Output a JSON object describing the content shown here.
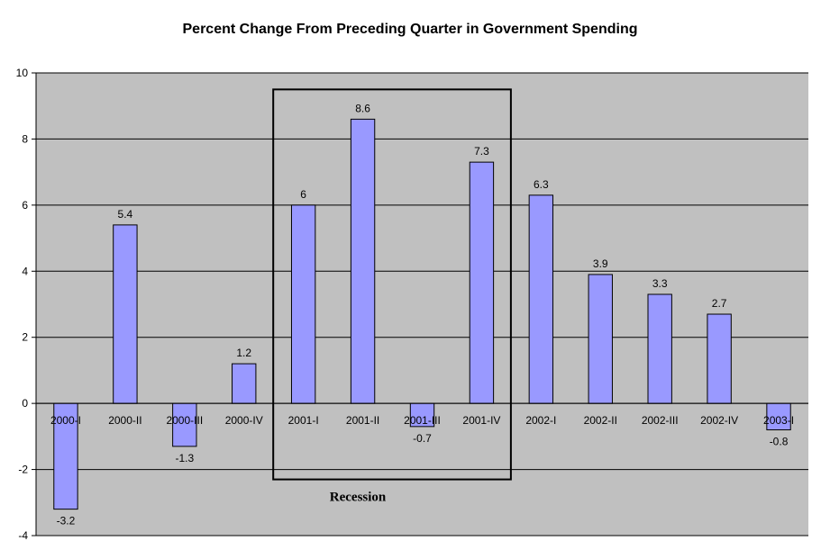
{
  "chart_data": {
    "type": "bar",
    "title": "Percent Change From Preceding Quarter in Government Spending",
    "xlabel": "",
    "ylabel": "",
    "categories": [
      "2000-I",
      "2000-II",
      "2000-III",
      "2000-IV",
      "2001-I",
      "2001-II",
      "2001-III",
      "2001-IV",
      "2002-I",
      "2002-II",
      "2002-III",
      "2002-IV",
      "2003-I"
    ],
    "values": [
      -3.2,
      5.4,
      -1.3,
      1.2,
      6,
      8.6,
      -0.7,
      7.3,
      6.3,
      3.9,
      3.3,
      2.7,
      -0.8
    ],
    "data_labels": [
      "-3.2",
      "5.4",
      "-1.3",
      "1.2",
      "6",
      "8.6",
      "-0.7",
      "7.3",
      "6.3",
      "3.9",
      "3.3",
      "2.7",
      "-0.8"
    ],
    "ylim": [
      -4,
      10
    ],
    "yticks": [
      -4,
      -2,
      0,
      2,
      4,
      6,
      8,
      10
    ],
    "grid": true,
    "legend": "none",
    "annotation": {
      "text": "Recession",
      "spans_categories": [
        "2001-I",
        "2001-IV"
      ]
    },
    "colors": {
      "bar_fill": "#9999ff",
      "bar_stroke": "#000000",
      "plot_background": "#c0c0c0",
      "grid": "#000000"
    }
  }
}
